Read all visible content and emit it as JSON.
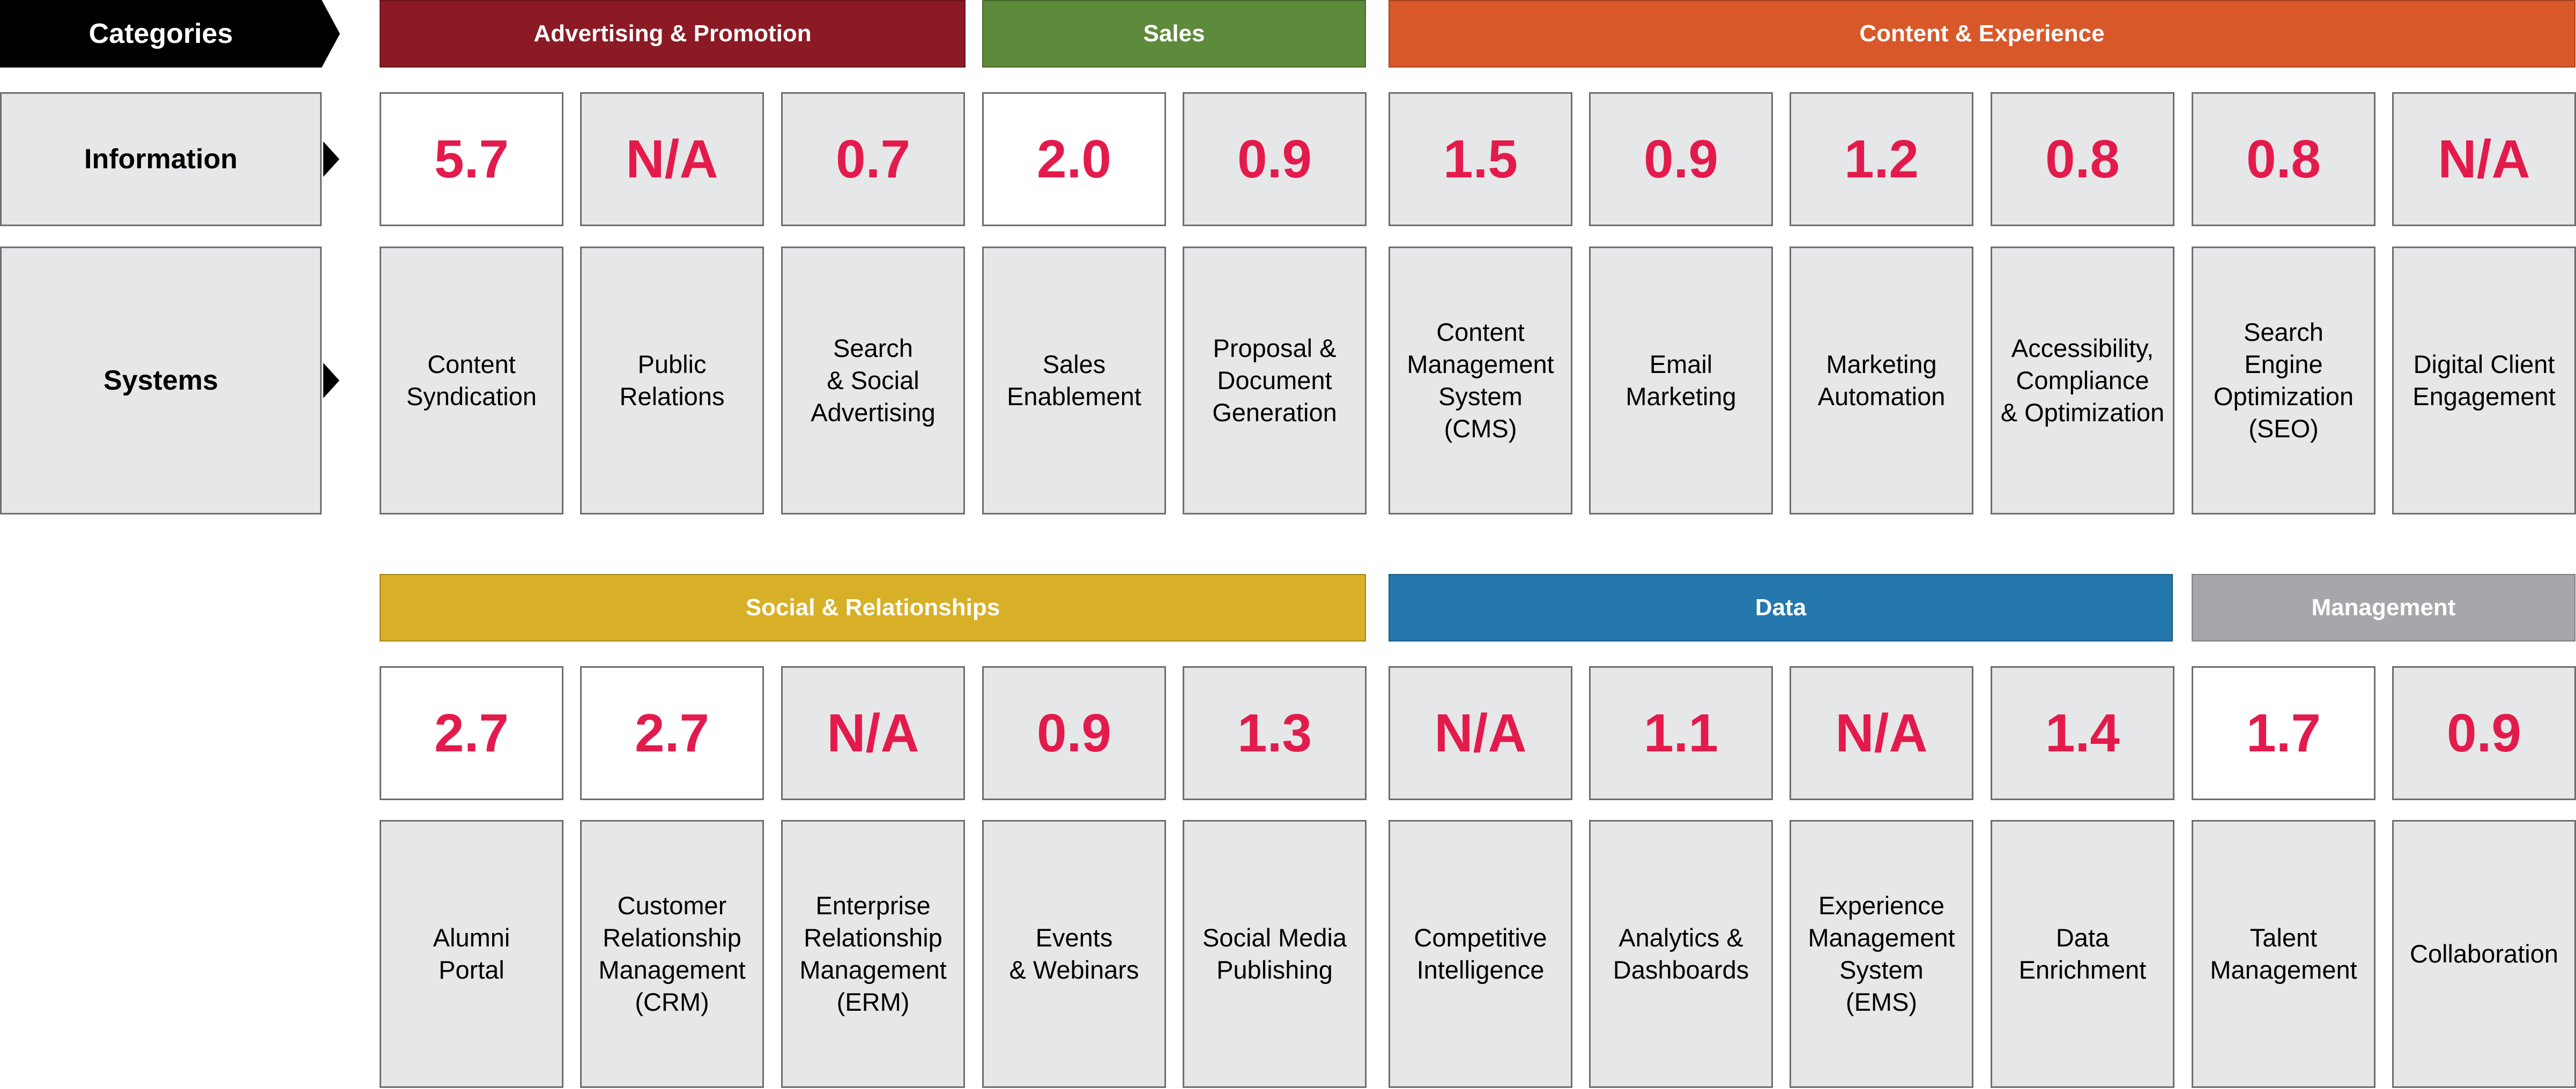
{
  "header": {
    "categories_label": "Categories",
    "information_label": "Information",
    "systems_label": "Systems"
  },
  "colors": {
    "advertising": "#8b1a24",
    "sales": "#5e8a3b",
    "content": "#d9582a",
    "social": "#d7b027",
    "data": "#2478ad",
    "management": "#a6a7aa",
    "value_text": "#e31b4c",
    "highlight_bg": "#ffffff",
    "normal_bg": "#e6e7e8"
  },
  "groups": [
    {
      "label": "Advertising & Promotion",
      "color": "#8b1a24"
    },
    {
      "label": "Sales",
      "color": "#5e8a3b"
    },
    {
      "label": "Content & Experience",
      "color": "#d9582a"
    },
    {
      "label": "Social & Relationships",
      "color": "#d7b027"
    },
    {
      "label": "Data",
      "color": "#2478ad"
    },
    {
      "label": "Management",
      "color": "#a6a7aa"
    }
  ],
  "top_row": [
    {
      "value": "5.7",
      "highlight": true,
      "system": "Content\nSyndication"
    },
    {
      "value": "N/A",
      "highlight": false,
      "system": "Public\nRelations"
    },
    {
      "value": "0.7",
      "highlight": false,
      "system": "Search\n& Social\nAdvertising"
    },
    {
      "value": "2.0",
      "highlight": true,
      "system": "Sales\nEnablement"
    },
    {
      "value": "0.9",
      "highlight": false,
      "system": "Proposal &\nDocument\nGeneration"
    },
    {
      "value": "1.5",
      "highlight": false,
      "system": "Content\nManagement\nSystem\n(CMS)"
    },
    {
      "value": "0.9",
      "highlight": false,
      "system": "Email\nMarketing"
    },
    {
      "value": "1.2",
      "highlight": false,
      "system": "Marketing\nAutomation"
    },
    {
      "value": "0.8",
      "highlight": false,
      "system": "Accessibility,\nCompliance\n& Optimization"
    },
    {
      "value": "0.8",
      "highlight": false,
      "system": "Search\nEngine\nOptimization\n(SEO)"
    },
    {
      "value": "N/A",
      "highlight": false,
      "system": "Digital Client\nEngagement"
    }
  ],
  "bottom_row": [
    {
      "value": "2.7",
      "highlight": true,
      "system": "Alumni\nPortal"
    },
    {
      "value": "2.7",
      "highlight": true,
      "system": "Customer\nRelationship\nManagement\n(CRM)"
    },
    {
      "value": "N/A",
      "highlight": false,
      "system": "Enterprise\nRelationship\nManagement\n(ERM)"
    },
    {
      "value": "0.9",
      "highlight": false,
      "system": "Events\n& Webinars"
    },
    {
      "value": "1.3",
      "highlight": false,
      "system": "Social Media\nPublishing"
    },
    {
      "value": "N/A",
      "highlight": false,
      "system": "Competitive\nIntelligence"
    },
    {
      "value": "1.1",
      "highlight": false,
      "system": "Analytics &\nDashboards"
    },
    {
      "value": "N/A",
      "highlight": false,
      "system": "Experience\nManagement\nSystem\n(EMS)"
    },
    {
      "value": "1.4",
      "highlight": false,
      "system": "Data\nEnrichment"
    },
    {
      "value": "1.7",
      "highlight": true,
      "system": "Talent\nManagement"
    },
    {
      "value": "0.9",
      "highlight": false,
      "system": "Collaboration"
    }
  ]
}
